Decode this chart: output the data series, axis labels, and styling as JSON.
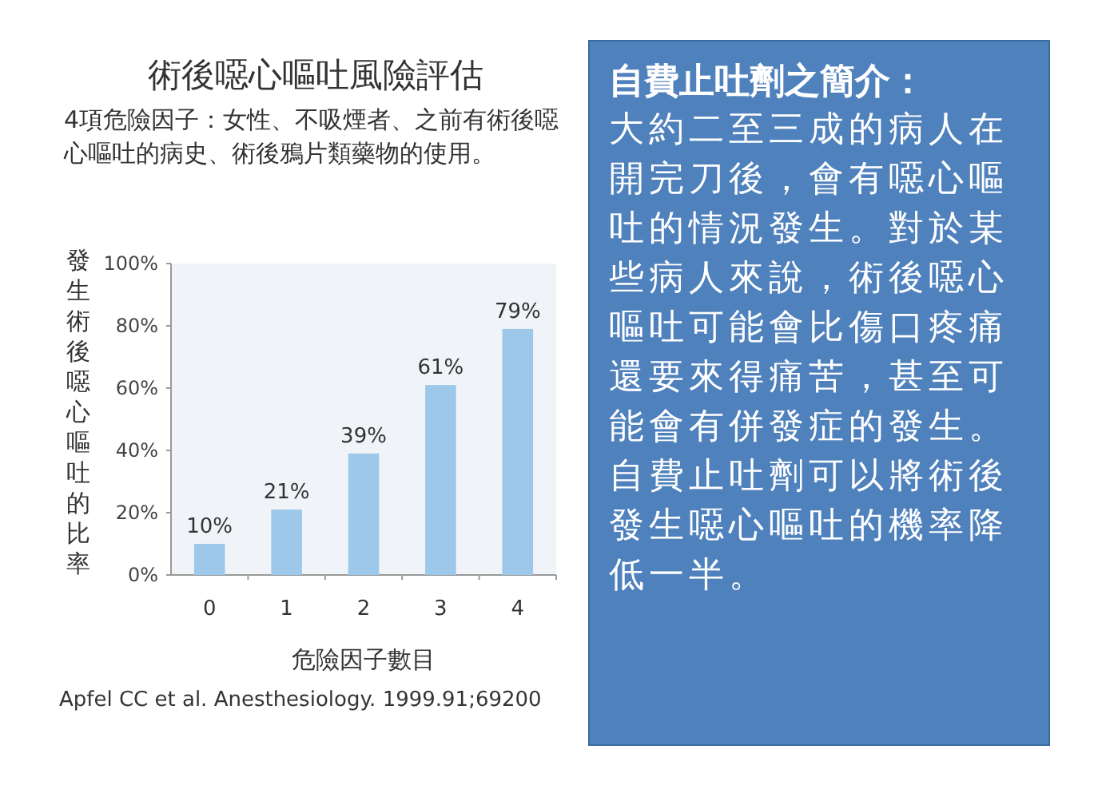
{
  "chart_data": [
    {
      "type": "bar",
      "title": "術後噁心嘔吐風險評估",
      "subtitle": "4項危險因子：女性、不吸煙者、之前有術後噁心嘔吐的病史、術後鴉片類藥物的使用。",
      "xlabel": "危險因子數目",
      "ylabel": "發生術後噁心嘔吐的比率",
      "categories": [
        "0",
        "1",
        "2",
        "3",
        "4"
      ],
      "values": [
        10,
        21,
        39,
        61,
        79
      ],
      "color": "#9dc8ea",
      "value_labels": [
        "10%",
        "21%",
        "39%",
        "61%",
        "79%"
      ],
      "ylim": [
        0,
        100
      ],
      "yticks": [
        {
          "value": 0,
          "label": "0%"
        },
        {
          "value": 20,
          "label": "20%"
        },
        {
          "value": 40,
          "label": "40%"
        },
        {
          "value": 60,
          "label": "60%"
        },
        {
          "value": 80,
          "label": "80%"
        },
        {
          "value": 100,
          "label": "100%"
        }
      ],
      "grid": false,
      "annotations": [
        "Apfel CC et al. Anesthesiology. 1999.91;69200"
      ]
    },
    {
      "type": "other",
      "title": "自費止吐劑之簡介：",
      "annotations": [
        "大約二至三成的病人在開完刀後，會有噁心嘔吐的情況發生。對於某些病人來說，術後噁心嘔吐可能會比傷口疼痛還要來得痛苦，甚至可能會有併發症的發生。自費止吐劑可以將術後發生噁心嘔吐的機率降低一半。"
      ]
    }
  ]
}
